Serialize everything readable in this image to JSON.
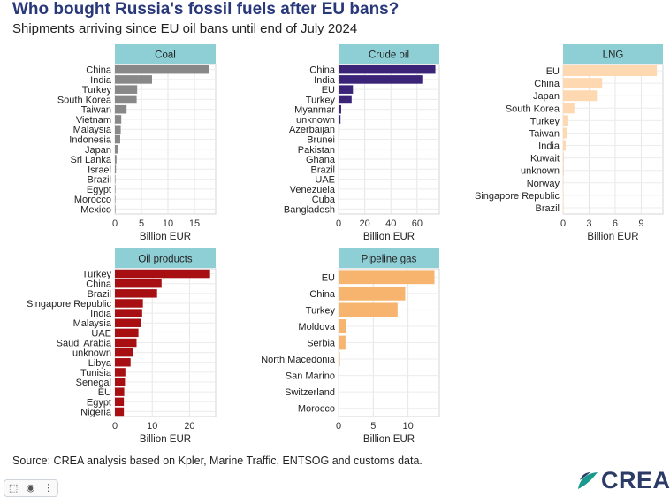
{
  "header": {
    "title": "Who bought Russia's fossil fuels after EU bans?",
    "subtitle": "Shipments arriving since EU oil bans until end of July 2024"
  },
  "footer": {
    "source": "Source: CREA analysis based on Kpler, Marine Traffic, ENTSOG and customs data.",
    "logo_text": "CREA",
    "logo_colors": [
      "#1a9a8c",
      "#2b3a67"
    ]
  },
  "toolbar": {
    "icons": [
      "selection-icon",
      "camera-icon",
      "more-options-icon"
    ]
  },
  "chart_data": [
    {
      "type": "bar",
      "orientation": "horizontal",
      "title": "Coal",
      "xlabel": "Billion EUR",
      "color": "#888888",
      "xlim": [
        0,
        19
      ],
      "xticks": [
        0,
        5,
        10,
        15
      ],
      "grid": true,
      "categories": [
        "China",
        "India",
        "Turkey",
        "South Korea",
        "Taiwan",
        "Vietnam",
        "Malaysia",
        "Indonesia",
        "Japan",
        "Sri Lanka",
        "Israel",
        "Brazil",
        "Egypt",
        "Morocco",
        "Mexico"
      ],
      "values": [
        17.8,
        7.0,
        4.2,
        4.1,
        2.2,
        1.2,
        1.1,
        1.0,
        0.5,
        0.3,
        0.2,
        0.1,
        0.1,
        0.05,
        0.05
      ]
    },
    {
      "type": "bar",
      "orientation": "horizontal",
      "title": "Crude oil",
      "xlabel": "Billion EUR",
      "color": "#3b2478",
      "xlim": [
        0,
        77
      ],
      "xticks": [
        0,
        20,
        40,
        60
      ],
      "grid": true,
      "categories": [
        "China",
        "India",
        "EU",
        "Turkey",
        "Myanmar",
        "unknown",
        "Azerbaijan",
        "Brunei",
        "Pakistan",
        "Ghana",
        "Brazil",
        "UAE",
        "Venezuela",
        "Cuba",
        "Bangladesh"
      ],
      "values": [
        74,
        64,
        11,
        10,
        2,
        1.5,
        0.7,
        0.5,
        0.4,
        0.3,
        0.3,
        0.2,
        0.2,
        0.1,
        0.1
      ]
    },
    {
      "type": "bar",
      "orientation": "horizontal",
      "title": "LNG",
      "xlabel": "Billion EUR",
      "color": "#fdd8b0",
      "xlim": [
        0,
        11.5
      ],
      "xticks": [
        0,
        3,
        6,
        9
      ],
      "grid": true,
      "categories": [
        "EU",
        "China",
        "Japan",
        "South Korea",
        "Turkey",
        "Taiwan",
        "India",
        "Kuwait",
        "unknown",
        "Norway",
        "Singapore Republic",
        "Brazil"
      ],
      "values": [
        10.8,
        4.5,
        3.9,
        1.3,
        0.6,
        0.4,
        0.3,
        0.1,
        0.1,
        0.05,
        0.05,
        0.03
      ]
    },
    {
      "type": "bar",
      "orientation": "horizontal",
      "title": "Oil products",
      "xlabel": "Billion EUR",
      "color": "#a80f13",
      "xlim": [
        0,
        27
      ],
      "xticks": [
        0,
        10,
        20
      ],
      "grid": true,
      "categories": [
        "Turkey",
        "China",
        "Brazil",
        "Singapore Republic",
        "India",
        "Malaysia",
        "UAE",
        "Saudi Arabia",
        "unknown",
        "Libya",
        "Tunisia",
        "Senegal",
        "EU",
        "Egypt",
        "Nigeria"
      ],
      "values": [
        25.5,
        12.5,
        11.3,
        7.5,
        7.3,
        7.0,
        6.3,
        5.8,
        4.8,
        4.2,
        2.8,
        2.7,
        2.5,
        2.4,
        2.4
      ]
    },
    {
      "type": "bar",
      "orientation": "horizontal",
      "title": "Pipeline gas",
      "xlabel": "Billion EUR",
      "color": "#f6b46e",
      "xlim": [
        0,
        14.5
      ],
      "xticks": [
        0,
        5,
        10
      ],
      "grid": true,
      "categories": [
        "EU",
        "China",
        "Turkey",
        "Moldova",
        "Serbia",
        "North Macedonia",
        "San Marino",
        "Switzerland",
        "Morocco"
      ],
      "values": [
        13.8,
        9.6,
        8.5,
        1.1,
        1.0,
        0.2,
        0.05,
        0.03,
        0.02
      ]
    }
  ]
}
